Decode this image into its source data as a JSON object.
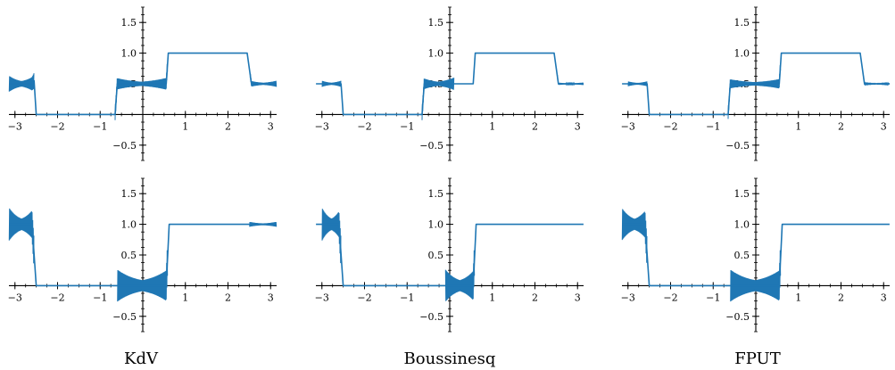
{
  "panel_titles": [
    "KdV",
    "Boussinesq",
    "FPUT"
  ],
  "chart_data": {
    "type": "line",
    "layout": "2 rows x 3 columns",
    "line_color": "#1f77b4",
    "grid": false,
    "xlim": [
      -3.14159,
      3.14159
    ],
    "ylim": [
      -0.75,
      1.75
    ],
    "xticks": [
      -3,
      -2,
      -1,
      1,
      2,
      3
    ],
    "xtick_labels": [
      "−3",
      "−2",
      "−1",
      "1",
      "2",
      "3"
    ],
    "yticks": [
      -0.5,
      0.5,
      1.0,
      1.5
    ],
    "ytick_labels": [
      "−0.5",
      "0.5",
      "1.0",
      "1.5"
    ],
    "panels": [
      {
        "row": 1,
        "column": "KdV",
        "x": [
          -3.14,
          -2.6,
          -2.55,
          -2.5,
          -0.65,
          -0.6,
          0.55,
          0.6,
          2.45,
          2.55,
          3.14
        ],
        "y": [
          0.5,
          0.5,
          0.55,
          0.0,
          0.0,
          0.5,
          0.5,
          1.0,
          1.0,
          0.5,
          0.5
        ],
        "oscillation_bands": [
          [
            -3.14,
            -2.55,
            0.13
          ],
          [
            -0.65,
            0.58,
            0.1
          ],
          [
            2.52,
            3.14,
            0.05
          ]
        ]
      },
      {
        "row": 1,
        "column": "Boussinesq",
        "x": [
          -3.14,
          -2.6,
          -2.55,
          -2.5,
          -0.65,
          -0.6,
          0.55,
          0.6,
          2.45,
          2.55,
          3.14
        ],
        "y": [
          0.5,
          0.5,
          0.5,
          0.0,
          0.0,
          0.5,
          0.5,
          1.0,
          1.0,
          0.5,
          0.5
        ],
        "oscillation_bands": [
          [
            -3.0,
            -2.55,
            0.05
          ],
          [
            -0.65,
            0.1,
            0.1
          ],
          [
            2.52,
            3.14,
            0.02
          ]
        ]
      },
      {
        "row": 1,
        "column": "FPUT",
        "x": [
          -3.14,
          -2.6,
          -2.55,
          -2.5,
          -0.65,
          -0.6,
          0.55,
          0.6,
          2.45,
          2.55,
          3.14
        ],
        "y": [
          0.5,
          0.5,
          0.5,
          0.0,
          0.0,
          0.5,
          0.5,
          1.0,
          1.0,
          0.5,
          0.5
        ],
        "oscillation_bands": [
          [
            -3.0,
            -2.55,
            0.04
          ],
          [
            -0.65,
            0.58,
            0.08
          ],
          [
            2.52,
            3.14,
            0.01
          ]
        ]
      },
      {
        "row": 2,
        "column": "KdV",
        "x": [
          -3.14,
          -2.6,
          -2.5,
          -0.6,
          0.55,
          0.62,
          3.14
        ],
        "y": [
          1.0,
          1.0,
          0.0,
          0.0,
          0.0,
          1.0,
          1.0
        ],
        "oscillation_bands": [
          [
            -3.14,
            -2.55,
            0.27
          ],
          [
            -0.6,
            0.58,
            0.26
          ],
          [
            2.5,
            3.14,
            0.04
          ]
        ]
      },
      {
        "row": 2,
        "column": "Boussinesq",
        "x": [
          -3.14,
          -2.6,
          -2.5,
          -0.6,
          0.55,
          0.62,
          3.14
        ],
        "y": [
          1.0,
          1.0,
          0.0,
          0.0,
          0.0,
          1.0,
          1.0
        ],
        "oscillation_bands": [
          [
            -3.0,
            -2.55,
            0.27
          ],
          [
            -0.1,
            0.58,
            0.26
          ]
        ]
      },
      {
        "row": 2,
        "column": "FPUT",
        "x": [
          -3.14,
          -2.6,
          -2.5,
          -0.6,
          0.55,
          0.62,
          3.14
        ],
        "y": [
          1.0,
          1.0,
          0.0,
          0.0,
          0.0,
          1.0,
          1.0
        ],
        "oscillation_bands": [
          [
            -3.14,
            -2.55,
            0.26
          ],
          [
            -0.6,
            0.58,
            0.26
          ]
        ]
      }
    ]
  }
}
